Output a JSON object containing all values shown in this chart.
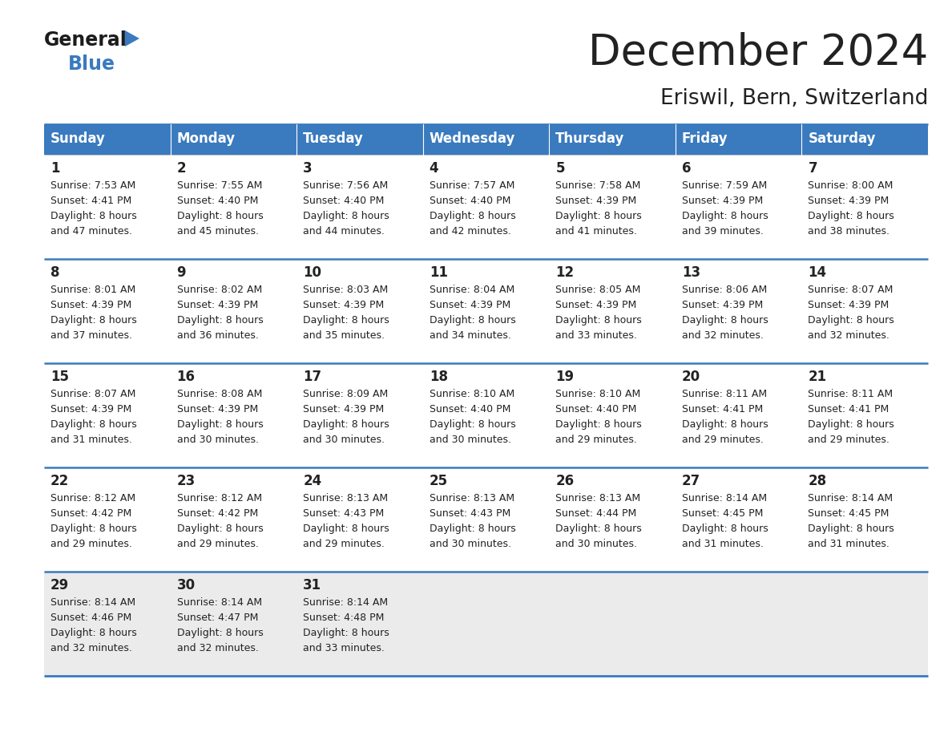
{
  "title": "December 2024",
  "subtitle": "Eriswil, Bern, Switzerland",
  "header_color": "#3a7abf",
  "header_text_color": "#ffffff",
  "cell_bg_color": "#ffffff",
  "last_row_color": "#ebebeb",
  "border_color": "#3a7abf",
  "text_color": "#222222",
  "days_of_week": [
    "Sunday",
    "Monday",
    "Tuesday",
    "Wednesday",
    "Thursday",
    "Friday",
    "Saturday"
  ],
  "calendar": [
    [
      {
        "day": "1",
        "sunrise": "7:53 AM",
        "sunset": "4:41 PM",
        "daylight": "8 hours and 47 minutes"
      },
      {
        "day": "2",
        "sunrise": "7:55 AM",
        "sunset": "4:40 PM",
        "daylight": "8 hours and 45 minutes"
      },
      {
        "day": "3",
        "sunrise": "7:56 AM",
        "sunset": "4:40 PM",
        "daylight": "8 hours and 44 minutes"
      },
      {
        "day": "4",
        "sunrise": "7:57 AM",
        "sunset": "4:40 PM",
        "daylight": "8 hours and 42 minutes"
      },
      {
        "day": "5",
        "sunrise": "7:58 AM",
        "sunset": "4:39 PM",
        "daylight": "8 hours and 41 minutes"
      },
      {
        "day": "6",
        "sunrise": "7:59 AM",
        "sunset": "4:39 PM",
        "daylight": "8 hours and 39 minutes"
      },
      {
        "day": "7",
        "sunrise": "8:00 AM",
        "sunset": "4:39 PM",
        "daylight": "8 hours and 38 minutes"
      }
    ],
    [
      {
        "day": "8",
        "sunrise": "8:01 AM",
        "sunset": "4:39 PM",
        "daylight": "8 hours and 37 minutes"
      },
      {
        "day": "9",
        "sunrise": "8:02 AM",
        "sunset": "4:39 PM",
        "daylight": "8 hours and 36 minutes"
      },
      {
        "day": "10",
        "sunrise": "8:03 AM",
        "sunset": "4:39 PM",
        "daylight": "8 hours and 35 minutes"
      },
      {
        "day": "11",
        "sunrise": "8:04 AM",
        "sunset": "4:39 PM",
        "daylight": "8 hours and 34 minutes"
      },
      {
        "day": "12",
        "sunrise": "8:05 AM",
        "sunset": "4:39 PM",
        "daylight": "8 hours and 33 minutes"
      },
      {
        "day": "13",
        "sunrise": "8:06 AM",
        "sunset": "4:39 PM",
        "daylight": "8 hours and 32 minutes"
      },
      {
        "day": "14",
        "sunrise": "8:07 AM",
        "sunset": "4:39 PM",
        "daylight": "8 hours and 32 minutes"
      }
    ],
    [
      {
        "day": "15",
        "sunrise": "8:07 AM",
        "sunset": "4:39 PM",
        "daylight": "8 hours and 31 minutes"
      },
      {
        "day": "16",
        "sunrise": "8:08 AM",
        "sunset": "4:39 PM",
        "daylight": "8 hours and 30 minutes"
      },
      {
        "day": "17",
        "sunrise": "8:09 AM",
        "sunset": "4:39 PM",
        "daylight": "8 hours and 30 minutes"
      },
      {
        "day": "18",
        "sunrise": "8:10 AM",
        "sunset": "4:40 PM",
        "daylight": "8 hours and 30 minutes"
      },
      {
        "day": "19",
        "sunrise": "8:10 AM",
        "sunset": "4:40 PM",
        "daylight": "8 hours and 29 minutes"
      },
      {
        "day": "20",
        "sunrise": "8:11 AM",
        "sunset": "4:41 PM",
        "daylight": "8 hours and 29 minutes"
      },
      {
        "day": "21",
        "sunrise": "8:11 AM",
        "sunset": "4:41 PM",
        "daylight": "8 hours and 29 minutes"
      }
    ],
    [
      {
        "day": "22",
        "sunrise": "8:12 AM",
        "sunset": "4:42 PM",
        "daylight": "8 hours and 29 minutes"
      },
      {
        "day": "23",
        "sunrise": "8:12 AM",
        "sunset": "4:42 PM",
        "daylight": "8 hours and 29 minutes"
      },
      {
        "day": "24",
        "sunrise": "8:13 AM",
        "sunset": "4:43 PM",
        "daylight": "8 hours and 29 minutes"
      },
      {
        "day": "25",
        "sunrise": "8:13 AM",
        "sunset": "4:43 PM",
        "daylight": "8 hours and 30 minutes"
      },
      {
        "day": "26",
        "sunrise": "8:13 AM",
        "sunset": "4:44 PM",
        "daylight": "8 hours and 30 minutes"
      },
      {
        "day": "27",
        "sunrise": "8:14 AM",
        "sunset": "4:45 PM",
        "daylight": "8 hours and 31 minutes"
      },
      {
        "day": "28",
        "sunrise": "8:14 AM",
        "sunset": "4:45 PM",
        "daylight": "8 hours and 31 minutes"
      }
    ],
    [
      {
        "day": "29",
        "sunrise": "8:14 AM",
        "sunset": "4:46 PM",
        "daylight": "8 hours and 32 minutes"
      },
      {
        "day": "30",
        "sunrise": "8:14 AM",
        "sunset": "4:47 PM",
        "daylight": "8 hours and 32 minutes"
      },
      {
        "day": "31",
        "sunrise": "8:14 AM",
        "sunset": "4:48 PM",
        "daylight": "8 hours and 33 minutes"
      },
      null,
      null,
      null,
      null
    ]
  ]
}
